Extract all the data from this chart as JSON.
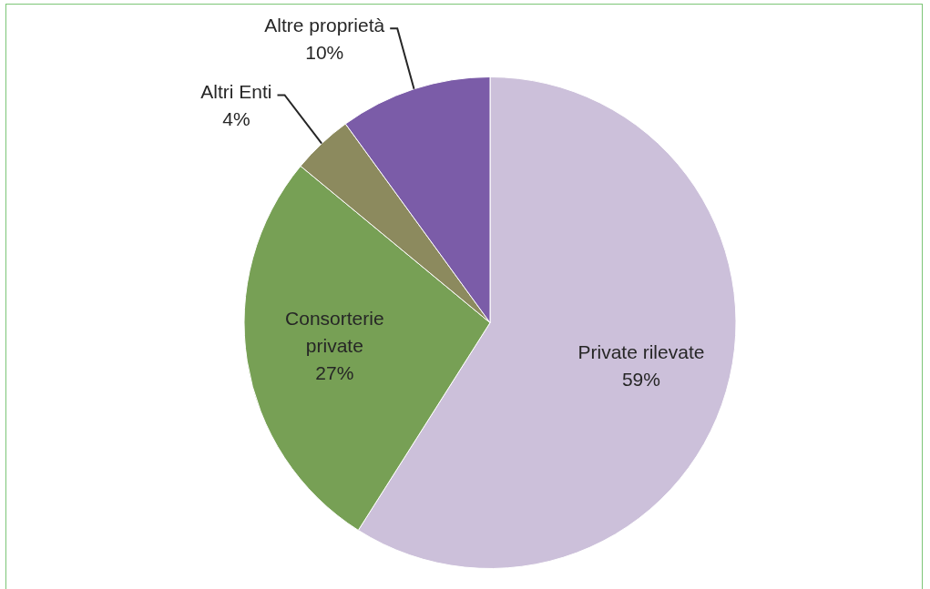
{
  "chart_data": {
    "type": "pie",
    "categories": [
      "Private rilevate",
      "Consorterie private",
      "Altri Enti",
      "Altre proprietà"
    ],
    "values": [
      59,
      27,
      4,
      10
    ],
    "colors": [
      "#ccc0da",
      "#77a055",
      "#8c8a5e",
      "#7b5ca8"
    ],
    "value_labels": [
      "59%",
      "27%",
      "4%",
      "10%"
    ],
    "legend": false
  }
}
